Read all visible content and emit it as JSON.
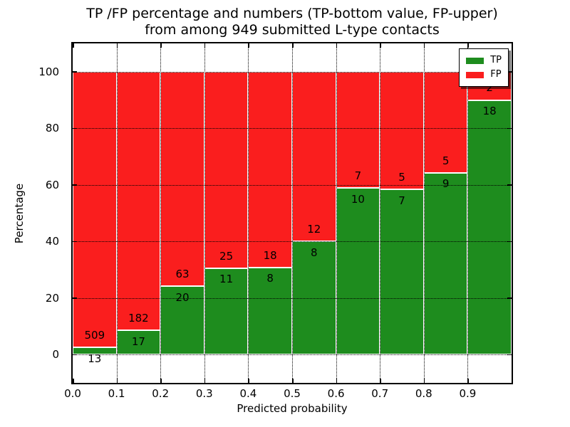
{
  "title": {
    "line1": "TP /FP percentage and numbers (TP-bottom value, FP-upper)",
    "line2": "from among 949 submitted L-type contacts"
  },
  "colors": {
    "tp_green": "#1e8c1e",
    "fp_red": "#fa1e1e",
    "grid": "#000000",
    "text": "#000000",
    "background": "#ffffff"
  },
  "legend": {
    "position": "upper right",
    "items": [
      {
        "label": "TP",
        "color": "#1e8c1e"
      },
      {
        "label": "FP",
        "color": "#fa1e1e"
      }
    ]
  },
  "chart_data": {
    "type": "bar",
    "stacked": true,
    "normalization": "each bar scaled to 100 percent; numbers printed are raw counts (TP bottom, FP upper)",
    "title": "TP /FP percentage and numbers (TP-bottom value, FP-upper) from among 949 submitted L-type contacts",
    "xlabel": "Predicted probability",
    "ylabel": "Percentage",
    "total_contacts": 949,
    "bin_width": 0.1,
    "bin_starts": [
      0.0,
      0.1,
      0.2,
      0.3,
      0.4,
      0.5,
      0.6,
      0.7,
      0.8,
      0.9
    ],
    "series": [
      {
        "name": "TP",
        "color": "#1e8c1e",
        "counts": [
          13,
          17,
          20,
          11,
          8,
          8,
          10,
          7,
          9,
          18
        ]
      },
      {
        "name": "FP",
        "color": "#fa1e1e",
        "counts": [
          509,
          182,
          63,
          25,
          18,
          12,
          7,
          5,
          5,
          2
        ]
      }
    ],
    "tp_percent_per_bin": [
      2.49,
      8.54,
      24.1,
      30.56,
      30.77,
      40.0,
      58.82,
      58.33,
      64.29,
      90.0
    ],
    "x_ticks": [
      "0.0",
      "0.1",
      "0.2",
      "0.3",
      "0.4",
      "0.5",
      "0.6",
      "0.7",
      "0.8",
      "0.9"
    ],
    "y_ticks": [
      0,
      20,
      40,
      60,
      80,
      100
    ],
    "xlim": [
      0.0,
      1.0
    ],
    "ylim": [
      -10,
      110
    ],
    "grid": true,
    "legend_position": "upper right"
  }
}
